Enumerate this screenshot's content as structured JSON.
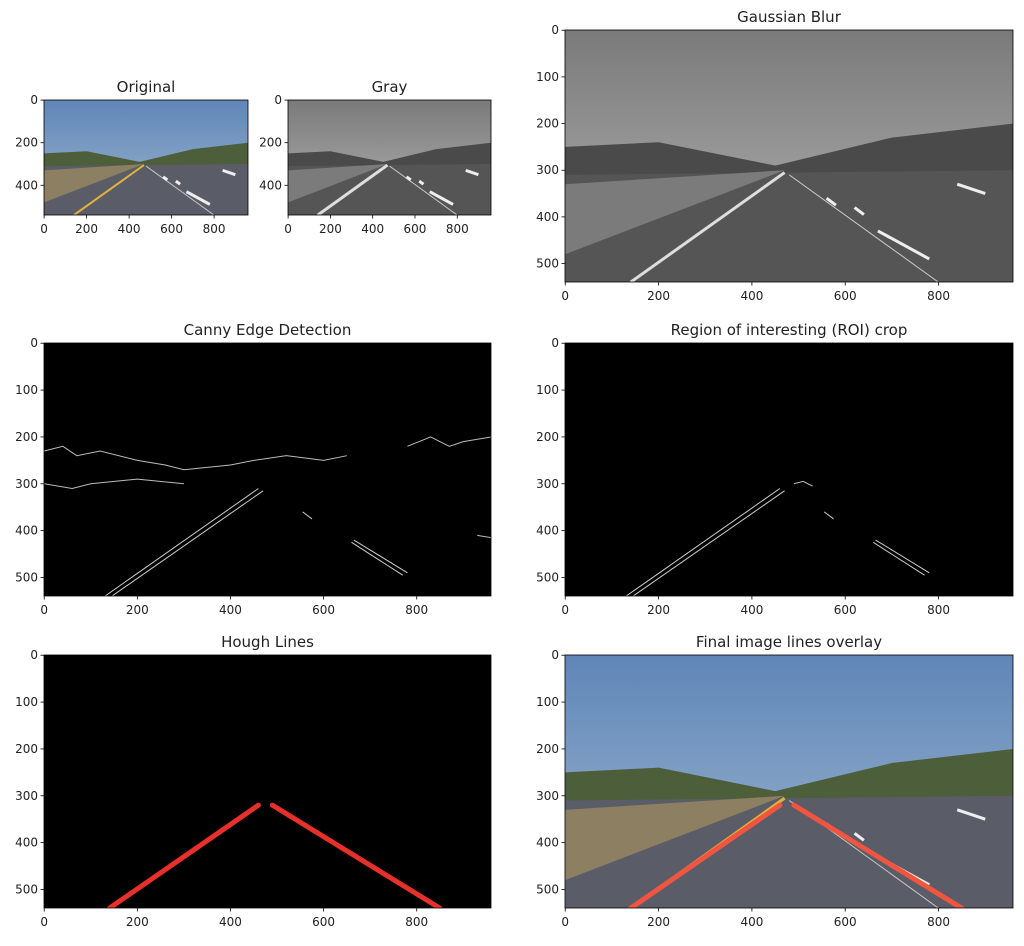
{
  "chart_data": [
    {
      "type": "image",
      "title": "Original",
      "xlim": [
        -0.5,
        959.5
      ],
      "ylim": [
        539.5,
        -0.5
      ],
      "xticks": [
        0,
        200,
        400,
        600,
        800
      ],
      "yticks": [
        0,
        200,
        400
      ]
    },
    {
      "type": "image",
      "title": "Gray",
      "xlim": [
        -0.5,
        959.5
      ],
      "ylim": [
        539.5,
        -0.5
      ],
      "xticks": [
        0,
        200,
        400,
        600,
        800
      ],
      "yticks": [
        0,
        200,
        400
      ]
    },
    {
      "type": "image",
      "title": "Gaussian Blur",
      "xlim": [
        -0.5,
        959.5
      ],
      "ylim": [
        539.5,
        -0.5
      ],
      "xticks": [
        0,
        200,
        400,
        600,
        800
      ],
      "yticks": [
        0,
        100,
        200,
        300,
        400,
        500
      ]
    },
    {
      "type": "image",
      "title": "Canny Edge Detection",
      "xlim": [
        -0.5,
        959.5
      ],
      "ylim": [
        539.5,
        -0.5
      ],
      "xticks": [
        0,
        200,
        400,
        600,
        800
      ],
      "yticks": [
        0,
        100,
        200,
        300,
        400,
        500
      ]
    },
    {
      "type": "image",
      "title": "Region of interesting (ROI) crop",
      "xlim": [
        -0.5,
        959.5
      ],
      "ylim": [
        539.5,
        -0.5
      ],
      "xticks": [
        0,
        200,
        400,
        600,
        800
      ],
      "yticks": [
        0,
        100,
        200,
        300,
        400,
        500
      ]
    },
    {
      "type": "image",
      "title": "Hough Lines",
      "xlim": [
        -0.5,
        959.5
      ],
      "ylim": [
        539.5,
        -0.5
      ],
      "xticks": [
        0,
        200,
        400,
        600,
        800
      ],
      "yticks": [
        0,
        100,
        200,
        300,
        400,
        500
      ],
      "lines": [
        {
          "x": [
            140,
            460
          ],
          "y": [
            540,
            320
          ],
          "color": "#e8302a"
        },
        {
          "x": [
            490,
            850
          ],
          "y": [
            320,
            540
          ],
          "color": "#e8302a"
        }
      ]
    },
    {
      "type": "image",
      "title": "Final image lines overlay",
      "xlim": [
        -0.5,
        959.5
      ],
      "ylim": [
        539.5,
        -0.5
      ],
      "xticks": [
        0,
        200,
        400,
        600,
        800
      ],
      "yticks": [
        0,
        100,
        200,
        300,
        400,
        500
      ],
      "lines": [
        {
          "x": [
            140,
            460
          ],
          "y": [
            540,
            320
          ],
          "color": "#f2553f"
        },
        {
          "x": [
            490,
            850
          ],
          "y": [
            320,
            540
          ],
          "color": "#f2553f"
        }
      ]
    }
  ]
}
